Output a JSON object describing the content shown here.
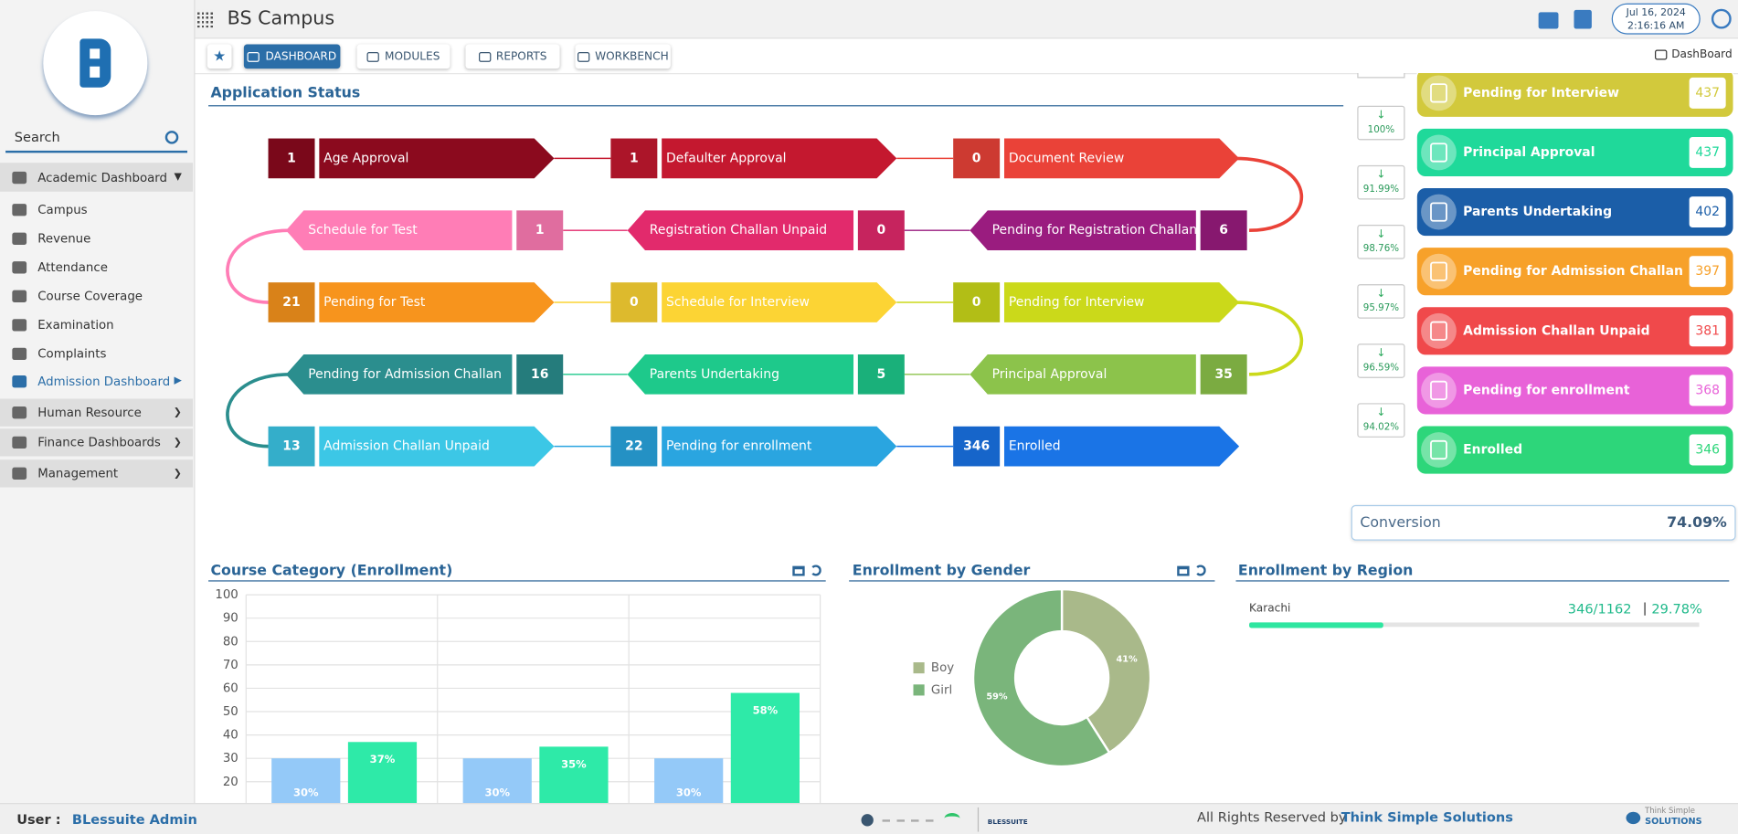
{
  "header": {
    "title": "BS Campus",
    "date": "Jul 16, 2024",
    "time": "2:16:16 AM"
  },
  "tabs": [
    "DASHBOARD",
    "MODULES",
    "REPORTS",
    "WORKBENCH"
  ],
  "breadcrumb": "DashBoard",
  "sidebar": {
    "search": "Search",
    "menu": [
      "Academic Dashboard",
      "Campus",
      "Revenue",
      "Attendance",
      "Course Coverage",
      "Examination",
      "Complaints",
      "Admission Dashboard",
      "Human Resource",
      "Finance Dashboards",
      "Management"
    ]
  },
  "status": {
    "title": "Application Status",
    "steps": [
      {
        "label": "Age Approval",
        "count": 1,
        "color": "#8b0a1e"
      },
      {
        "label": "Defaulter Approval",
        "count": 1,
        "color": "#c4182f"
      },
      {
        "label": "Document Review",
        "count": 0,
        "color": "#ea4238"
      },
      {
        "label": "Pending for Registration Challan",
        "count": 6,
        "color": "#9a1c7f"
      },
      {
        "label": "Registration Challan Unpaid",
        "count": 0,
        "color": "#e22a6c"
      },
      {
        "label": "Schedule for Test",
        "count": 1,
        "color": "#ff7db6"
      },
      {
        "label": "Pending for Test",
        "count": 21,
        "color": "#f7941d"
      },
      {
        "label": "Schedule for Interview",
        "count": 0,
        "color": "#fcd434"
      },
      {
        "label": "Pending for Interview",
        "count": 0,
        "color": "#cbd91a"
      },
      {
        "label": "Principal Approval",
        "count": 35,
        "color": "#8cc34b"
      },
      {
        "label": "Parents Undertaking",
        "count": 5,
        "color": "#1ec98b"
      },
      {
        "label": "Pending for Admission Challan",
        "count": 16,
        "color": "#2b8e8e"
      },
      {
        "label": "Admission Challan Unpaid",
        "count": 13,
        "color": "#3cc7e6"
      },
      {
        "label": "Pending for enrollment",
        "count": 22,
        "color": "#2aa5e0"
      },
      {
        "label": "Enrolled",
        "count": 346,
        "color": "#1a74e6"
      }
    ]
  },
  "funnel": {
    "items": [
      {
        "label": "Pending for Interview",
        "count": 437,
        "color": "#d2c93c"
      },
      {
        "label": "Principal Approval",
        "count": 437,
        "color": "#1fd99a"
      },
      {
        "label": "Parents Undertaking",
        "count": 402,
        "color": "#1b5ea8"
      },
      {
        "label": "Pending for Admission Challan",
        "count": 397,
        "color": "#f7a12a"
      },
      {
        "label": "Admission Challan Unpaid",
        "count": 381,
        "color": "#f0494b"
      },
      {
        "label": "Pending for enrollment",
        "count": 368,
        "color": "#e862d8"
      },
      {
        "label": "Enrolled",
        "count": 346,
        "color": "#2dd67a"
      }
    ],
    "rates": [
      "100%",
      "91.99%",
      "98.76%",
      "95.97%",
      "96.59%",
      "94.02%"
    ],
    "conversion_label": "Conversion",
    "conversion": "74.09%"
  },
  "chart_data": [
    {
      "type": "bar",
      "title": "Course Category (Enrollment)",
      "categories": [
        null,
        null,
        null
      ],
      "series": [
        {
          "color": "#94c9f8",
          "values": [
            30,
            30,
            30
          ],
          "value_labels": [
            "30%",
            "30%",
            "30%"
          ]
        },
        {
          "color": "#2eeaa8",
          "values": [
            37,
            35,
            58
          ],
          "value_labels": [
            "37%",
            "35%",
            "58%"
          ]
        }
      ],
      "ylim": [
        0,
        100
      ],
      "yticks": [
        20,
        30,
        40,
        50,
        60,
        70,
        80,
        90,
        100
      ],
      "grid": true
    },
    {
      "type": "donut",
      "title": "Enrollment by Gender",
      "categories": [
        "Boy",
        "Girl"
      ],
      "values": [
        41,
        59
      ],
      "value_labels": [
        "41%",
        "59%"
      ],
      "colors": [
        "#a9b98a",
        "#7ab57b"
      ],
      "legend": "left"
    }
  ],
  "region": {
    "title": "Enrollment by Region",
    "label": "Karachi",
    "ratio": "346/1162",
    "value": 29.78,
    "value_label": "29.78%"
  },
  "footer": {
    "user_label": "User :",
    "user": "BLessuite Admin",
    "logo": "BLESSUITE",
    "rights": "All Rights Reserved by",
    "company": "Think Simple Solutions",
    "brand_top": "Think Simple",
    "brand_bottom": "SOLUTIONS"
  }
}
